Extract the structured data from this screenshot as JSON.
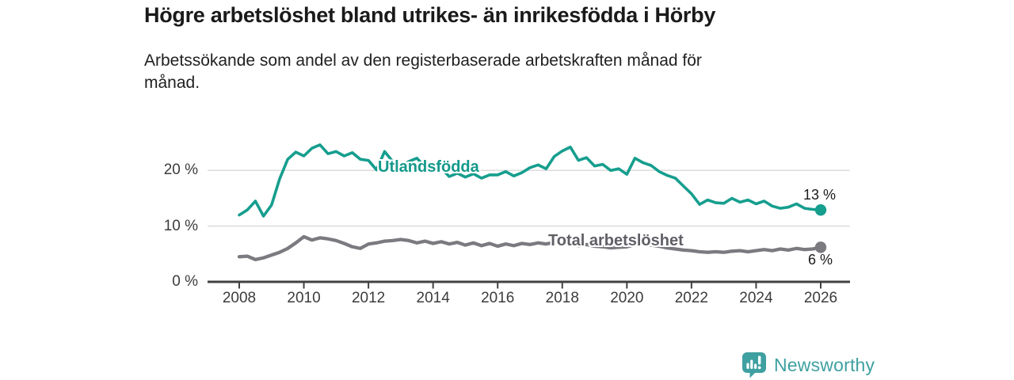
{
  "header": {
    "title": "Högre arbetslöshet bland utrikes- än inrikesfödda i Hörby",
    "subtitle": "Arbetssökande som andel av den registerbaserade arbetskraften månad för månad."
  },
  "chart_data": {
    "type": "line",
    "title": "Högre arbetslöshet bland utrikes- än inrikesfödda i Hörby",
    "subtitle": "Arbetssökande som andel av den registerbaserade arbetskraften månad för månad.",
    "xlabel": "",
    "ylabel": "",
    "grid": "horizontal-only",
    "xlim": [
      2007.9,
      2026.9
    ],
    "ylim": [
      0,
      26
    ],
    "x_ticks": [
      2008,
      2010,
      2012,
      2014,
      2016,
      2018,
      2020,
      2022,
      2024,
      2026
    ],
    "y_ticks": [
      {
        "value": 0,
        "label": "0 %"
      },
      {
        "value": 10,
        "label": "10 %"
      },
      {
        "value": 20,
        "label": "20 %"
      }
    ],
    "x_start": 2008,
    "x_step": 0.25,
    "series": [
      {
        "name": "Utlandsfödda",
        "color": "#169e8e",
        "end_label": "13 %",
        "end_value": 12.9,
        "values": [
          12.0,
          12.9,
          14.5,
          11.8,
          13.8,
          18.5,
          22.0,
          23.3,
          22.6,
          24.0,
          24.6,
          23.0,
          23.4,
          22.6,
          23.2,
          22.0,
          21.8,
          20.1,
          23.4,
          21.6,
          20.8,
          21.6,
          22.2,
          20.6,
          19.9,
          20.4,
          18.9,
          19.5,
          18.8,
          19.4,
          18.6,
          19.2,
          19.2,
          19.8,
          19.0,
          19.6,
          20.5,
          21.0,
          20.3,
          22.5,
          23.5,
          24.2,
          21.8,
          22.3,
          20.8,
          21.1,
          20.0,
          20.3,
          19.3,
          22.2,
          21.4,
          20.9,
          19.8,
          19.1,
          18.6,
          17.2,
          15.8,
          13.9,
          14.7,
          14.2,
          14.1,
          15.0,
          14.3,
          14.7,
          14.0,
          14.5,
          13.6,
          13.2,
          13.4,
          14.0,
          13.2,
          13.0,
          12.9
        ]
      },
      {
        "name": "Total arbetslöshet",
        "color": "#7a7a80",
        "end_label": "6 %",
        "end_value": 6.2,
        "values": [
          4.5,
          4.6,
          4.0,
          4.3,
          4.8,
          5.3,
          6.0,
          7.0,
          8.1,
          7.5,
          7.9,
          7.7,
          7.4,
          6.9,
          6.3,
          6.0,
          6.8,
          7.0,
          7.3,
          7.4,
          7.6,
          7.4,
          7.0,
          7.3,
          6.9,
          7.2,
          6.8,
          7.1,
          6.6,
          7.0,
          6.5,
          6.9,
          6.4,
          6.8,
          6.5,
          6.9,
          6.7,
          7.0,
          6.8,
          7.1,
          7.0,
          6.8,
          6.5,
          6.7,
          6.4,
          6.3,
          6.1,
          6.2,
          6.3,
          6.7,
          6.9,
          6.6,
          6.4,
          6.1,
          5.9,
          5.7,
          5.6,
          5.4,
          5.3,
          5.4,
          5.3,
          5.5,
          5.6,
          5.4,
          5.6,
          5.8,
          5.6,
          5.9,
          5.7,
          6.0,
          5.8,
          5.9,
          6.2
        ]
      }
    ],
    "colors": {
      "axis": "#414141",
      "gridline": "#dcdcdc",
      "tick_text": "#3c3c3c"
    }
  },
  "branding": {
    "logo_text": "Newsworthy",
    "logo_icon": "newsworthy-chart-bubble-icon",
    "logo_color": "#3fa0a1"
  }
}
